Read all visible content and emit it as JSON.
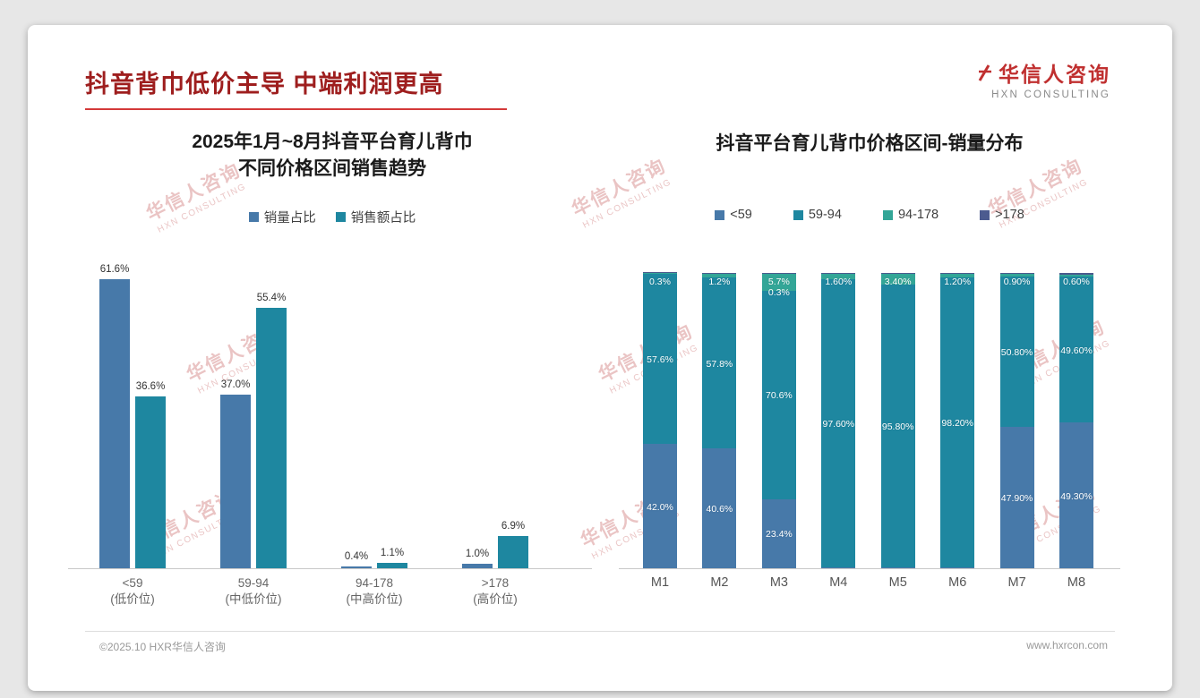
{
  "slide": {
    "title": "抖音背巾低价主导 中端利润更高",
    "logo": {
      "cn": "华信人咨询",
      "en": "HXN CONSULTING"
    },
    "watermark": {
      "cn": "华信人咨询",
      "en": "HXN CONSULTING"
    },
    "footer": {
      "left": "©2025.10 HXR华信人咨询",
      "right": "www.hxrcon.com"
    }
  },
  "colors": {
    "title_red": "#9E1E1E",
    "underline_red": "#D43A3A",
    "series_blue": "#4779A9",
    "series_teal": "#1E87A0",
    "series_green": "#33A697",
    "series_navy": "#4C5B8F"
  },
  "chart_data": [
    {
      "type": "bar",
      "title": "2025年1月~8月抖音平台育儿背巾\n不同价格区间销售趋势",
      "categories": [
        [
          "<59",
          "(低价位)"
        ],
        [
          "59-94",
          "(中低价位)"
        ],
        [
          "94-178",
          "(中高价位)"
        ],
        [
          ">178",
          "(高价位)"
        ]
      ],
      "series": [
        {
          "name": "销量占比",
          "color_key": "series_blue",
          "values": [
            61.6,
            37.0,
            0.4,
            1.0
          ],
          "labels": [
            "61.6%",
            "37.0%",
            "0.4%",
            "1.0%"
          ]
        },
        {
          "name": "销售额占比",
          "color_key": "series_teal",
          "values": [
            36.6,
            55.4,
            1.1,
            6.9
          ],
          "labels": [
            "36.6%",
            "55.4%",
            "1.1%",
            "6.9%"
          ]
        }
      ],
      "ylim": [
        0,
        65
      ],
      "grid": false,
      "legend_position": "top"
    },
    {
      "type": "stacked-bar",
      "title": "抖音平台育儿背巾价格区间-销量分布",
      "categories": [
        "M1",
        "M2",
        "M3",
        "M4",
        "M5",
        "M6",
        "M7",
        "M8"
      ],
      "series": [
        {
          "name": "<59",
          "color_key": "series_blue",
          "values": [
            42.0,
            40.6,
            23.4,
            0.4,
            0.4,
            0.3,
            47.9,
            49.3
          ]
        },
        {
          "name": "59-94",
          "color_key": "series_teal",
          "values": [
            57.6,
            57.8,
            70.6,
            97.6,
            95.8,
            98.2,
            50.8,
            49.6
          ]
        },
        {
          "name": "94-178",
          "color_key": "series_green",
          "values": [
            0.3,
            1.2,
            5.7,
            1.6,
            3.4,
            1.2,
            0.9,
            0.6
          ]
        },
        {
          "name": ">178",
          "color_key": "series_navy",
          "values": [
            0.1,
            0.4,
            0.3,
            0.4,
            0.4,
            0.3,
            0.4,
            0.5
          ]
        }
      ],
      "labels": [
        [
          "42.0%",
          "40.6%",
          "23.4%",
          "",
          "",
          "",
          "47.90%",
          "49.30%"
        ],
        [
          "57.6%",
          "57.8%",
          "70.6%",
          "97.60%",
          "95.80%",
          "98.20%",
          "50.80%",
          "49.60%"
        ],
        [
          "0.3%",
          "1.2%",
          "5.7%",
          "1.60%",
          "3.40%",
          "1.20%",
          "0.90%",
          "0.60%"
        ],
        [
          "",
          "",
          "0.3%",
          "",
          "",
          "",
          "",
          ""
        ]
      ],
      "ylim": [
        0,
        100
      ],
      "grid": false,
      "legend_position": "top"
    }
  ]
}
